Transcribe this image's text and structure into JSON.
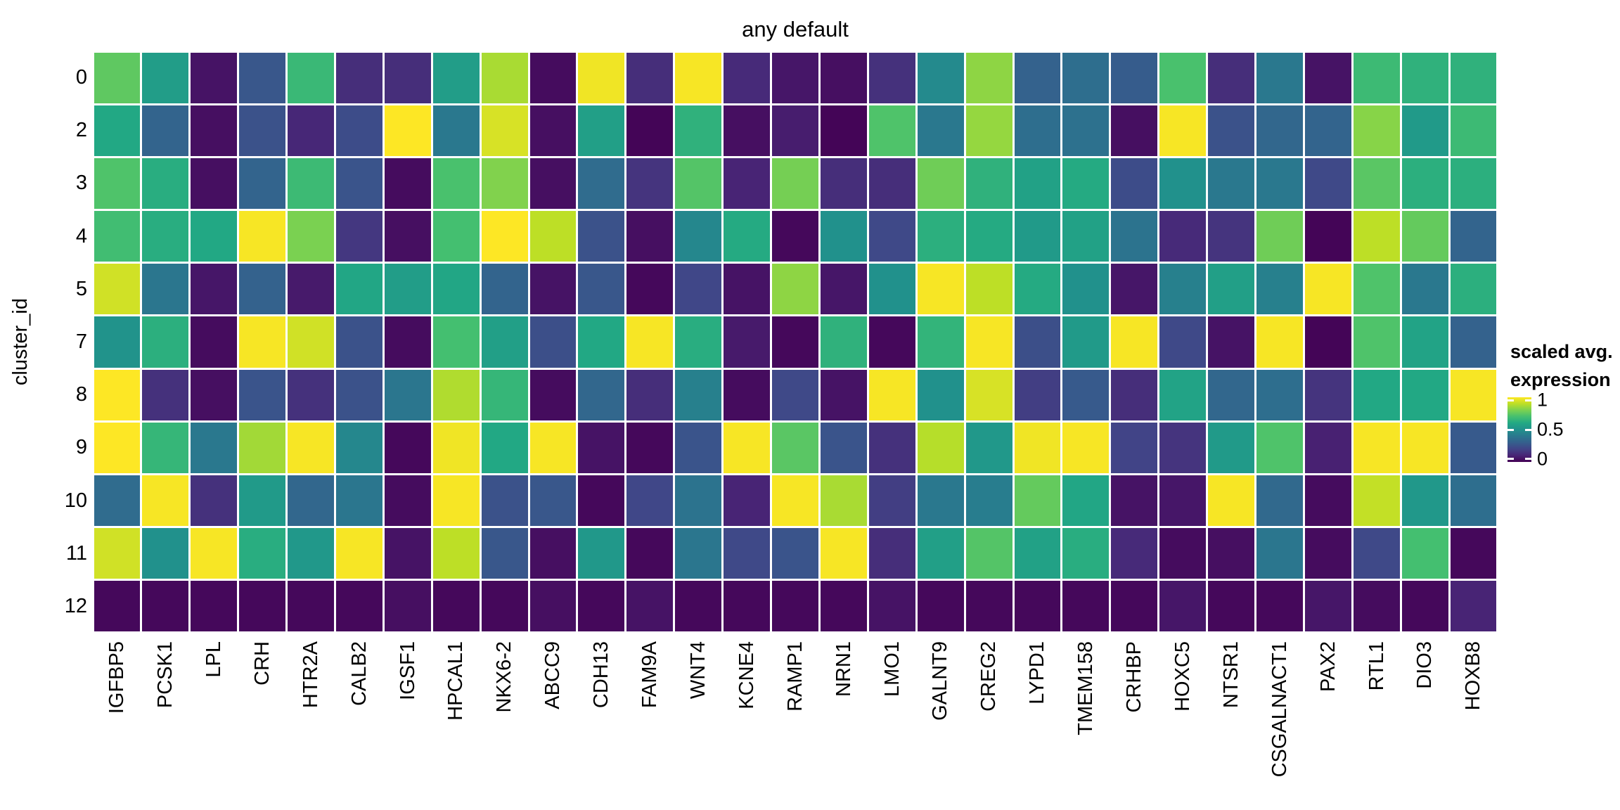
{
  "title": "any default",
  "y_axis": {
    "label": "cluster_id"
  },
  "legend": {
    "title_line1": "scaled avg.",
    "title_line2": "expression",
    "ticks": [
      {
        "label": "1",
        "value": 1
      },
      {
        "label": "0.5",
        "value": 0.5
      },
      {
        "label": "0",
        "value": 0
      }
    ]
  },
  "chart_data": {
    "type": "heatmap",
    "title": "any default",
    "ylabel": "cluster_id",
    "legend_title": "scaled avg. expression",
    "value_range": [
      0,
      1
    ],
    "rows": [
      "0",
      "2",
      "3",
      "4",
      "5",
      "7",
      "8",
      "9",
      "10",
      "11",
      "12"
    ],
    "columns": [
      "IGFBP5",
      "PCSK1",
      "LPL",
      "CRH",
      "HTR2A",
      "CALB2",
      "IGSF1",
      "HPCAL1",
      "NKX6-2",
      "ABCC9",
      "CDH13",
      "FAM9A",
      "WNT4",
      "KCNE4",
      "RAMP1",
      "NRN1",
      "LMO1",
      "GALNT9",
      "CREG2",
      "LYPD1",
      "TMEM158",
      "CRHBP",
      "HOXC5",
      "NTSR1",
      "CSGALNACT1",
      "PAX2",
      "RTL1",
      "DIO3",
      "HOXB8"
    ],
    "values": [
      [
        0.75,
        0.55,
        0.05,
        0.27,
        0.67,
        0.13,
        0.13,
        0.55,
        0.87,
        0.03,
        0.98,
        0.13,
        0.99,
        0.12,
        0.06,
        0.04,
        0.14,
        0.47,
        0.83,
        0.31,
        0.36,
        0.29,
        0.71,
        0.13,
        0.4,
        0.05,
        0.68,
        0.64,
        0.64
      ],
      [
        0.6,
        0.32,
        0.04,
        0.25,
        0.11,
        0.23,
        1.0,
        0.4,
        0.94,
        0.04,
        0.56,
        0.01,
        0.64,
        0.04,
        0.08,
        0.01,
        0.72,
        0.4,
        0.84,
        0.36,
        0.37,
        0.04,
        0.99,
        0.25,
        0.33,
        0.32,
        0.82,
        0.54,
        0.68
      ],
      [
        0.72,
        0.62,
        0.04,
        0.32,
        0.68,
        0.26,
        0.03,
        0.71,
        0.81,
        0.04,
        0.35,
        0.15,
        0.73,
        0.1,
        0.79,
        0.13,
        0.13,
        0.78,
        0.64,
        0.57,
        0.61,
        0.23,
        0.5,
        0.4,
        0.4,
        0.22,
        0.74,
        0.63,
        0.63
      ],
      [
        0.69,
        0.62,
        0.6,
        0.99,
        0.8,
        0.16,
        0.04,
        0.7,
        1.0,
        0.9,
        0.25,
        0.04,
        0.46,
        0.61,
        0.02,
        0.5,
        0.22,
        0.63,
        0.61,
        0.54,
        0.57,
        0.38,
        0.12,
        0.15,
        0.78,
        0.01,
        0.9,
        0.76,
        0.32
      ],
      [
        0.93,
        0.39,
        0.06,
        0.31,
        0.07,
        0.59,
        0.55,
        0.59,
        0.32,
        0.05,
        0.27,
        0.02,
        0.21,
        0.05,
        0.83,
        0.06,
        0.5,
        0.99,
        0.9,
        0.61,
        0.5,
        0.06,
        0.43,
        0.56,
        0.43,
        0.99,
        0.72,
        0.4,
        0.63
      ],
      [
        0.51,
        0.63,
        0.03,
        0.99,
        0.93,
        0.25,
        0.03,
        0.7,
        0.56,
        0.24,
        0.6,
        0.99,
        0.62,
        0.07,
        0.02,
        0.64,
        0.02,
        0.65,
        0.99,
        0.24,
        0.54,
        0.99,
        0.22,
        0.05,
        0.99,
        0.01,
        0.72,
        0.58,
        0.31
      ],
      [
        1.0,
        0.14,
        0.04,
        0.26,
        0.14,
        0.25,
        0.39,
        0.88,
        0.66,
        0.03,
        0.33,
        0.13,
        0.43,
        0.03,
        0.22,
        0.05,
        0.99,
        0.5,
        0.94,
        0.18,
        0.28,
        0.13,
        0.58,
        0.33,
        0.36,
        0.15,
        0.6,
        0.6,
        0.99
      ],
      [
        1.0,
        0.66,
        0.4,
        0.86,
        0.99,
        0.46,
        0.02,
        0.98,
        0.6,
        0.99,
        0.05,
        0.02,
        0.26,
        0.99,
        0.74,
        0.26,
        0.14,
        0.89,
        0.53,
        0.98,
        0.99,
        0.2,
        0.15,
        0.54,
        0.72,
        0.09,
        0.99,
        0.99,
        0.28
      ],
      [
        0.35,
        0.99,
        0.14,
        0.54,
        0.33,
        0.39,
        0.03,
        0.99,
        0.25,
        0.27,
        0.02,
        0.21,
        0.38,
        0.1,
        0.99,
        0.87,
        0.18,
        0.4,
        0.42,
        0.76,
        0.59,
        0.05,
        0.06,
        0.99,
        0.34,
        0.03,
        0.91,
        0.53,
        0.36
      ],
      [
        0.93,
        0.5,
        0.99,
        0.62,
        0.53,
        0.99,
        0.05,
        0.9,
        0.27,
        0.04,
        0.53,
        0.02,
        0.39,
        0.22,
        0.26,
        0.99,
        0.13,
        0.56,
        0.73,
        0.57,
        0.62,
        0.12,
        0.03,
        0.04,
        0.39,
        0.03,
        0.22,
        0.7,
        0.02
      ],
      [
        0.02,
        0.02,
        0.02,
        0.02,
        0.02,
        0.02,
        0.04,
        0.02,
        0.02,
        0.04,
        0.02,
        0.05,
        0.02,
        0.02,
        0.02,
        0.02,
        0.05,
        0.02,
        0.02,
        0.02,
        0.02,
        0.02,
        0.06,
        0.02,
        0.02,
        0.06,
        0.03,
        0.02,
        0.1
      ]
    ],
    "colormap": {
      "name": "viridis",
      "stops": [
        [
          0.0,
          "#440154"
        ],
        [
          0.1,
          "#482475"
        ],
        [
          0.2,
          "#414487"
        ],
        [
          0.3,
          "#355f8d"
        ],
        [
          0.4,
          "#2a788e"
        ],
        [
          0.5,
          "#21918c"
        ],
        [
          0.6,
          "#22a884"
        ],
        [
          0.7,
          "#44bf70"
        ],
        [
          0.8,
          "#7ad151"
        ],
        [
          0.9,
          "#bddf26"
        ],
        [
          1.0,
          "#fde725"
        ]
      ]
    },
    "grid_gap_color": "#ffffff",
    "legend_position": "right"
  }
}
